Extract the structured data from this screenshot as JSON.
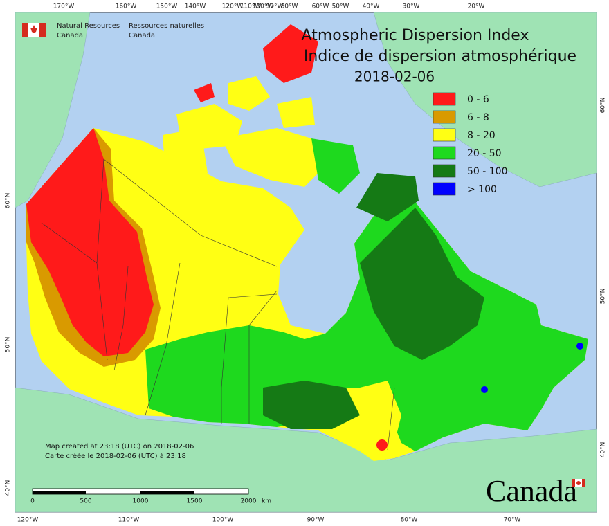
{
  "header": {
    "agency_en": [
      "Natural Resources",
      "Canada"
    ],
    "agency_fr": [
      "Ressources naturelles",
      "Canada"
    ]
  },
  "title": {
    "line_en": "Atmospheric Dispersion Index",
    "line_fr": "Indice de dispersion atmosphérique",
    "date": "2018-02-06"
  },
  "legend": [
    {
      "label": "0 - 6",
      "color": "#ff1a1a"
    },
    {
      "label": "6 - 8",
      "color": "#d99a00"
    },
    {
      "label": "8 - 20",
      "color": "#ffff14"
    },
    {
      "label": "20 - 50",
      "color": "#1ed91e"
    },
    {
      "label": "50 - 100",
      "color": "#157a15"
    },
    {
      "label": "> 100",
      "color": "#0000ff"
    }
  ],
  "graticule": {
    "top": [
      "170°W",
      "160°W",
      "150°W",
      "140°W",
      "120°W",
      "110°W",
      "100°W",
      "90°W",
      "80°W",
      "60°W",
      "50°W",
      "40°W",
      "30°W",
      "20°W"
    ],
    "bottom": [
      "120°W",
      "110°W",
      "100°W",
      "90°W",
      "80°W",
      "70°W"
    ],
    "left": [
      "60°N",
      "50°N",
      "40°N"
    ],
    "right": [
      "60°N",
      "50°N",
      "40°N"
    ]
  },
  "footer": [
    "Map created at 23:18 (UTC) on 2018-02-06",
    "Carte créée le 2018-02-06 (UTC) à 23:18"
  ],
  "scale_bar": {
    "labels": [
      "0",
      "500",
      "1000",
      "1500",
      "2000"
    ],
    "unit": "km"
  },
  "wordmark": "Canada"
}
